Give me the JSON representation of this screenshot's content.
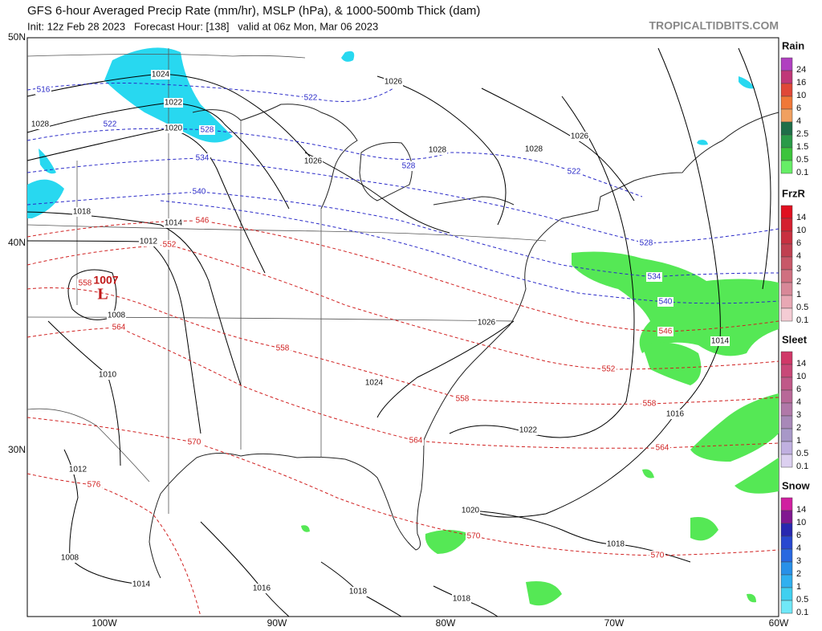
{
  "header": {
    "title": "GFS 6-hour Averaged Precip Rate (mm/hr), MSLP (hPa), & 1000-500mb Thick (dam)",
    "subtitle": "Init: 12z Feb 28 2023   Forecast Hour: [138]   valid at 06z Mon, Mar 06 2023",
    "site": "TROPICALTIDBITS.COM"
  },
  "map": {
    "lat_labels": [
      "50N",
      "40N",
      "30N"
    ],
    "lon_labels": [
      "100W",
      "90W",
      "80W",
      "70W",
      "60W"
    ],
    "low": {
      "pressure": "1007",
      "symbol": "L"
    },
    "isobar_labels": [
      "1024",
      "1022",
      "1020",
      "1028",
      "1018",
      "1014",
      "1012",
      "1008",
      "1010",
      "1026",
      "1028",
      "1026",
      "1028",
      "1026",
      "1026",
      "1024",
      "1022",
      "1014",
      "1016",
      "1020",
      "1018",
      "1012",
      "1008",
      "1014",
      "1016",
      "1018",
      "1018"
    ],
    "thickness_labels": [
      {
        "label": "516",
        "color": "#2a2ac8"
      },
      {
        "label": "522",
        "color": "#2a2ac8"
      },
      {
        "label": "528",
        "color": "#2a2ac8"
      },
      {
        "label": "522",
        "color": "#2a2ac8"
      },
      {
        "label": "534",
        "color": "#2a2ac8"
      },
      {
        "label": "528",
        "color": "#2a2ac8"
      },
      {
        "label": "522",
        "color": "#2a2ac8"
      },
      {
        "label": "540",
        "color": "#2a2ac8"
      },
      {
        "label": "528",
        "color": "#2a2ac8"
      },
      {
        "label": "534",
        "color": "#2a2ac8"
      },
      {
        "label": "540",
        "color": "#2a2ac8"
      },
      {
        "label": "546",
        "color": "#d02020"
      },
      {
        "label": "552",
        "color": "#d02020"
      },
      {
        "label": "558",
        "color": "#d02020"
      },
      {
        "label": "564",
        "color": "#d02020"
      },
      {
        "label": "558",
        "color": "#d02020"
      },
      {
        "label": "552",
        "color": "#d02020"
      },
      {
        "label": "546",
        "color": "#d02020"
      },
      {
        "label": "558",
        "color": "#d02020"
      },
      {
        "label": "558",
        "color": "#d02020"
      },
      {
        "label": "564",
        "color": "#d02020"
      },
      {
        "label": "564",
        "color": "#d02020"
      },
      {
        "label": "570",
        "color": "#d02020"
      },
      {
        "label": "576",
        "color": "#d02020"
      },
      {
        "label": "570",
        "color": "#d02020"
      },
      {
        "label": "570",
        "color": "#d02020"
      }
    ]
  },
  "legend": [
    {
      "title": "Rain",
      "levels": [
        24,
        16,
        10,
        6,
        4,
        2.5,
        1.5,
        0.5,
        0.1
      ],
      "colors": [
        "#b040c0",
        "#c03878",
        "#e04838",
        "#f07838",
        "#f0a060",
        "#1e6e48",
        "#2a9a48",
        "#3cc43c",
        "#66ee66"
      ]
    },
    {
      "title": "FrzR",
      "levels": [
        14,
        10,
        6,
        4,
        3,
        2,
        1,
        0.5,
        0.1
      ],
      "colors": [
        "#e01020",
        "#d42030",
        "#c83040",
        "#c04050",
        "#c85868",
        "#d07080",
        "#d88898",
        "#e8a8b4",
        "#f4ccd4"
      ]
    },
    {
      "title": "Sleet",
      "levels": [
        14,
        10,
        6,
        4,
        3,
        2,
        1,
        0.5,
        0.1
      ],
      "colors": [
        "#d03868",
        "#c84878",
        "#c05888",
        "#b86898",
        "#b078a8",
        "#a888b8",
        "#a898c8",
        "#c0b0e0",
        "#dcd0f0"
      ]
    },
    {
      "title": "Snow",
      "levels": [
        14,
        10,
        6,
        4,
        3,
        2,
        1,
        0.5,
        0.1
      ],
      "colors": [
        "#d020a0",
        "#801890",
        "#2828b0",
        "#2848d0",
        "#2868e0",
        "#2890e8",
        "#30b0f0",
        "#40d0f0",
        "#70e8f8"
      ]
    }
  ]
}
